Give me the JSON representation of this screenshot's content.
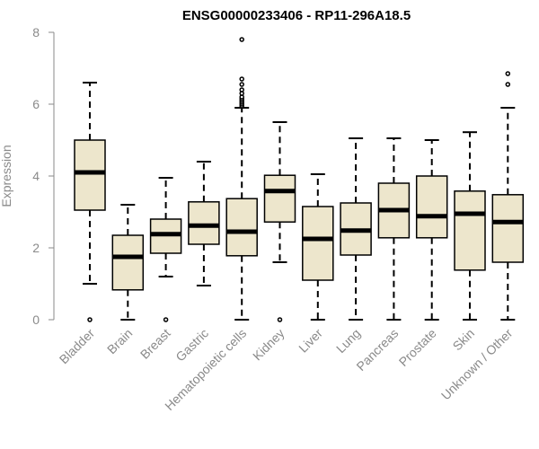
{
  "chart_data": {
    "type": "boxplot",
    "title": "ENSG00000233406 - RP11-296A18.5",
    "ylabel": "Expression",
    "ylim": [
      0,
      8
    ],
    "yticks": [
      0,
      2,
      4,
      6,
      8
    ],
    "grid": false,
    "colors": {
      "box_fill": "#ede6cc",
      "box_stroke": "#000000",
      "median": "#000000",
      "axis": "#8a8a8a"
    },
    "categories": [
      "Bladder",
      "Brain",
      "Breast",
      "Gastric",
      "Hematopoietic cells",
      "Kidney",
      "Liver",
      "Lung",
      "Pancreas",
      "Prostate",
      "Skin",
      "Unknown / Other"
    ],
    "boxes": [
      {
        "name": "Bladder",
        "min": 1.0,
        "q1": 3.05,
        "median": 4.1,
        "q3": 5.0,
        "max": 6.6,
        "outliers": [
          0.0
        ]
      },
      {
        "name": "Brain",
        "min": 0.0,
        "q1": 0.83,
        "median": 1.75,
        "q3": 2.35,
        "max": 3.2,
        "outliers": []
      },
      {
        "name": "Breast",
        "min": 1.2,
        "q1": 1.85,
        "median": 2.38,
        "q3": 2.8,
        "max": 3.95,
        "outliers": [
          0.0
        ]
      },
      {
        "name": "Gastric",
        "min": 0.95,
        "q1": 2.1,
        "median": 2.62,
        "q3": 3.28,
        "max": 4.4,
        "outliers": []
      },
      {
        "name": "Hematopoietic cells",
        "min": 0.0,
        "q1": 1.78,
        "median": 2.45,
        "q3": 3.37,
        "max": 5.9,
        "outliers": [
          5.95,
          6.0,
          6.05,
          6.1,
          6.15,
          6.2,
          6.3,
          6.4,
          6.55,
          6.7,
          7.8
        ]
      },
      {
        "name": "Kidney",
        "min": 1.6,
        "q1": 2.72,
        "median": 3.58,
        "q3": 4.02,
        "max": 5.5,
        "outliers": [
          0.0
        ]
      },
      {
        "name": "Liver",
        "min": 0.0,
        "q1": 1.1,
        "median": 2.25,
        "q3": 3.15,
        "max": 4.05,
        "outliers": []
      },
      {
        "name": "Lung",
        "min": 0.0,
        "q1": 1.8,
        "median": 2.48,
        "q3": 3.25,
        "max": 5.05,
        "outliers": []
      },
      {
        "name": "Pancreas",
        "min": 0.0,
        "q1": 2.28,
        "median": 3.05,
        "q3": 3.8,
        "max": 5.05,
        "outliers": []
      },
      {
        "name": "Prostate",
        "min": 0.0,
        "q1": 2.28,
        "median": 2.88,
        "q3": 4.0,
        "max": 5.0,
        "outliers": []
      },
      {
        "name": "Skin",
        "min": 0.0,
        "q1": 1.38,
        "median": 2.95,
        "q3": 3.58,
        "max": 5.22,
        "outliers": []
      },
      {
        "name": "Unknown / Other",
        "min": 0.0,
        "q1": 1.6,
        "median": 2.72,
        "q3": 3.48,
        "max": 5.9,
        "outliers": [
          6.55,
          6.85
        ]
      }
    ]
  }
}
